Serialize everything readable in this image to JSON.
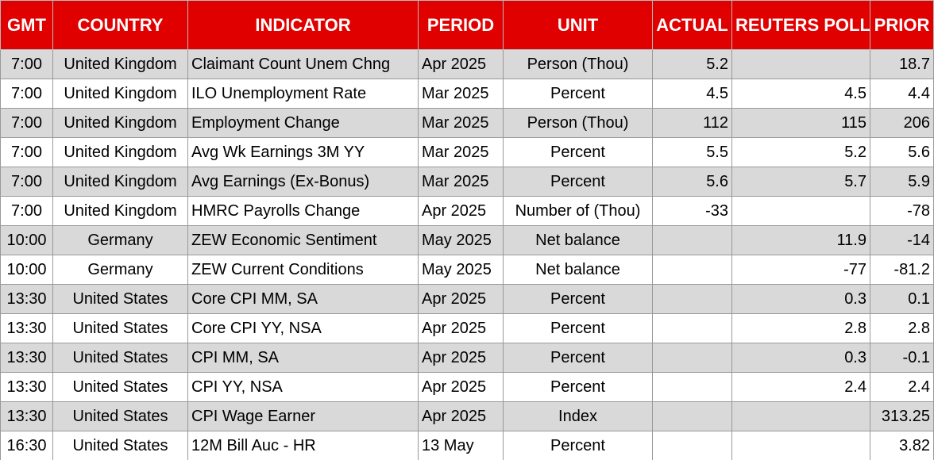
{
  "headers": {
    "gmt": "GMT",
    "country": "COUNTRY",
    "indicator": "INDICATOR",
    "period": "PERIOD",
    "unit": "UNIT",
    "actual": "ACTUAL",
    "reuters_poll": "REUTERS POLL",
    "prior": "PRIOR"
  },
  "rows": [
    {
      "gmt": "7:00",
      "country": "United Kingdom",
      "indicator": "Claimant Count Unem Chng",
      "period": "Apr 2025",
      "unit": "Person (Thou)",
      "actual": "5.2",
      "poll": "",
      "prior": "18.7"
    },
    {
      "gmt": "7:00",
      "country": "United Kingdom",
      "indicator": "ILO Unemployment Rate",
      "period": "Mar 2025",
      "unit": "Percent",
      "actual": "4.5",
      "poll": "4.5",
      "prior": "4.4"
    },
    {
      "gmt": "7:00",
      "country": "United Kingdom",
      "indicator": "Employment Change",
      "period": "Mar 2025",
      "unit": "Person (Thou)",
      "actual": "112",
      "poll": "115",
      "prior": "206"
    },
    {
      "gmt": "7:00",
      "country": "United Kingdom",
      "indicator": "Avg Wk Earnings 3M YY",
      "period": "Mar 2025",
      "unit": "Percent",
      "actual": "5.5",
      "poll": "5.2",
      "prior": "5.6"
    },
    {
      "gmt": "7:00",
      "country": "United Kingdom",
      "indicator": "Avg Earnings (Ex-Bonus)",
      "period": "Mar 2025",
      "unit": "Percent",
      "actual": "5.6",
      "poll": "5.7",
      "prior": "5.9"
    },
    {
      "gmt": "7:00",
      "country": "United Kingdom",
      "indicator": "HMRC Payrolls Change",
      "period": "Apr 2025",
      "unit": "Number of (Thou)",
      "actual": "-33",
      "poll": "",
      "prior": "-78"
    },
    {
      "gmt": "10:00",
      "country": "Germany",
      "indicator": "ZEW Economic Sentiment",
      "period": "May 2025",
      "unit": "Net balance",
      "actual": "",
      "poll": "11.9",
      "prior": "-14"
    },
    {
      "gmt": "10:00",
      "country": "Germany",
      "indicator": "ZEW Current Conditions",
      "period": "May 2025",
      "unit": "Net balance",
      "actual": "",
      "poll": "-77",
      "prior": "-81.2"
    },
    {
      "gmt": "13:30",
      "country": "United States",
      "indicator": "Core CPI MM, SA",
      "period": "Apr 2025",
      "unit": "Percent",
      "actual": "",
      "poll": "0.3",
      "prior": "0.1"
    },
    {
      "gmt": "13:30",
      "country": "United States",
      "indicator": "Core CPI YY, NSA",
      "period": "Apr 2025",
      "unit": "Percent",
      "actual": "",
      "poll": "2.8",
      "prior": "2.8"
    },
    {
      "gmt": "13:30",
      "country": "United States",
      "indicator": "CPI MM, SA",
      "period": "Apr 2025",
      "unit": "Percent",
      "actual": "",
      "poll": "0.3",
      "prior": "-0.1"
    },
    {
      "gmt": "13:30",
      "country": "United States",
      "indicator": "CPI YY, NSA",
      "period": "Apr 2025",
      "unit": "Percent",
      "actual": "",
      "poll": "2.4",
      "prior": "2.4"
    },
    {
      "gmt": "13:30",
      "country": "United States",
      "indicator": "CPI Wage Earner",
      "period": "Apr 2025",
      "unit": "Index",
      "actual": "",
      "poll": "",
      "prior": "313.25"
    },
    {
      "gmt": "16:30",
      "country": "United States",
      "indicator": "12M Bill Auc - HR",
      "period": "13 May",
      "unit": "Percent",
      "actual": "",
      "poll": "",
      "prior": "3.82"
    }
  ],
  "colors": {
    "header_bg": "#e00000",
    "header_text": "#ffffff",
    "row_shade": "#d9d9d9",
    "row_plain": "#ffffff"
  }
}
